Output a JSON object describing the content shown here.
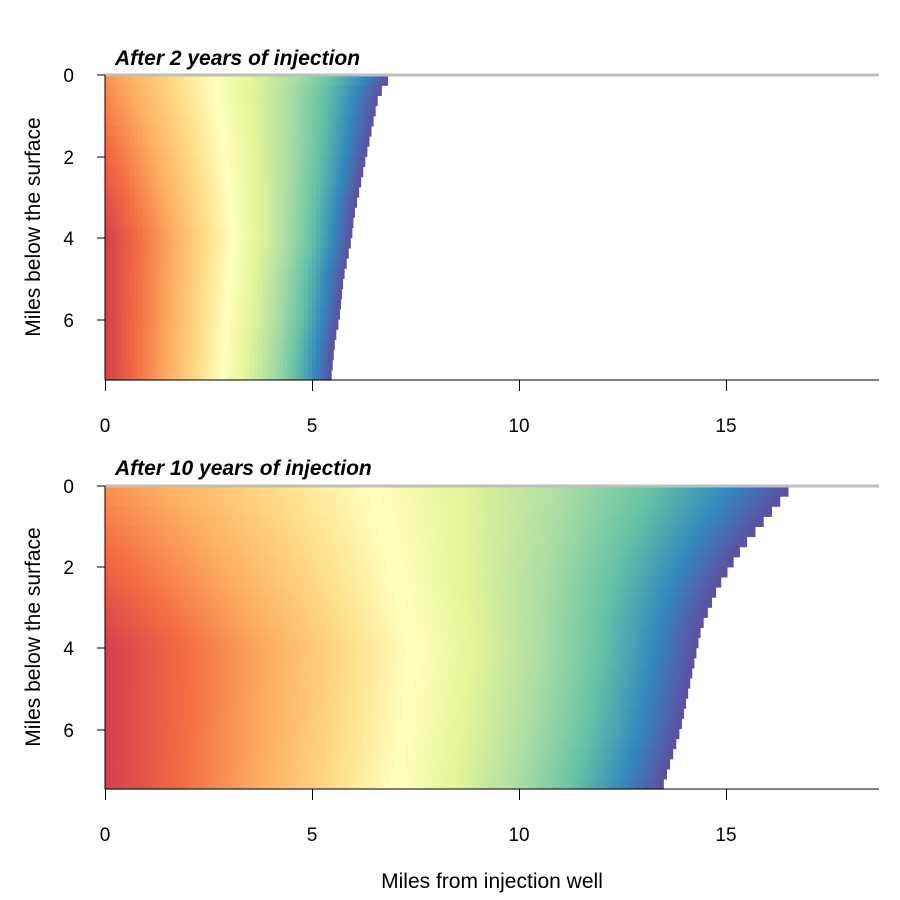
{
  "chart_data": [
    {
      "type": "heatmap",
      "title": "After 2 years of injection",
      "xlabel": "",
      "ylabel": "Miles below the surface",
      "xlim": [
        0,
        18.7
      ],
      "ylim": [
        7.5,
        0
      ],
      "y_inverted": true,
      "x_ticks": [
        0,
        5,
        10,
        15
      ],
      "y_ticks": [
        0,
        2,
        4,
        6
      ],
      "surface_line_color": "#bebebe",
      "colormap": "Spectral (red near well → yellow → green → blue/purple at front)",
      "front_depths": [
        0,
        0.5,
        1,
        1.5,
        2,
        2.5,
        3,
        3.5,
        4,
        4.5,
        5,
        5.5,
        6,
        6.5,
        7,
        7.5
      ],
      "front_distances": [
        6.9,
        6.6,
        6.5,
        6.4,
        6.3,
        6.2,
        6.1,
        6.0,
        5.95,
        5.85,
        5.75,
        5.7,
        5.65,
        5.55,
        5.5,
        5.45
      ]
    },
    {
      "type": "heatmap",
      "title": "After 10 years of injection",
      "xlabel": "Miles from injection well",
      "ylabel": "Miles below the surface",
      "xlim": [
        0,
        18.7
      ],
      "ylim": [
        7.5,
        0
      ],
      "y_inverted": true,
      "x_ticks": [
        0,
        5,
        10,
        15
      ],
      "y_ticks": [
        0,
        2,
        4,
        6
      ],
      "surface_line_color": "#bebebe",
      "colormap": "Spectral (red near well → yellow → green → blue/purple at front)",
      "front_depths": [
        0,
        0.5,
        1,
        1.5,
        2,
        2.5,
        3,
        3.5,
        4,
        4.5,
        5,
        5.5,
        6,
        6.5,
        7,
        7.5
      ],
      "front_distances": [
        16.6,
        16.2,
        15.8,
        15.4,
        15.1,
        14.8,
        14.6,
        14.4,
        14.3,
        14.2,
        14.1,
        14.0,
        13.9,
        13.75,
        13.6,
        13.45
      ]
    }
  ]
}
